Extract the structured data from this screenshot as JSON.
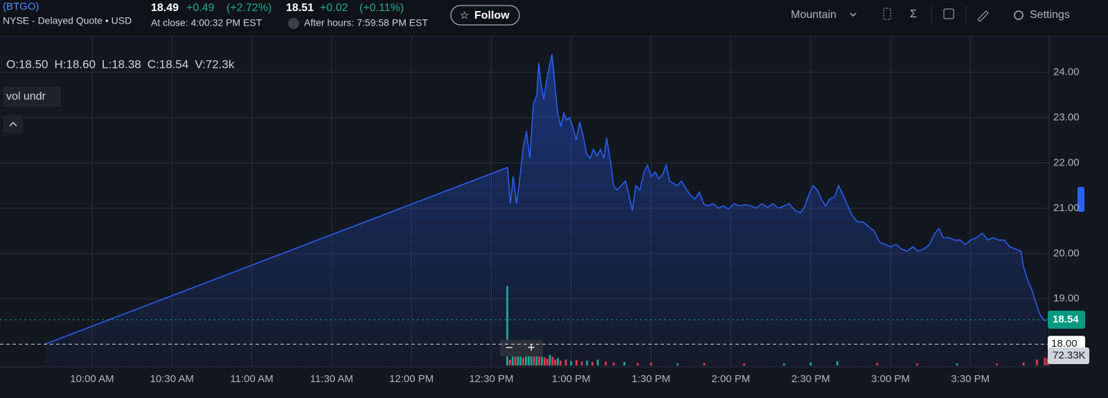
{
  "header": {
    "symbol": "(BTGO)",
    "exchange": "NYSE - Delayed Quote • USD",
    "close_price": "18.49",
    "close_change": "+0.49",
    "close_change_pct": "(+2.72%)",
    "close_time": "At close: 4:00:32 PM EST",
    "after_price": "18.51",
    "after_change": "+0.02",
    "after_change_pct": "(+0.11%)",
    "after_time": "After hours: 7:59:58 PM EST",
    "follow": "Follow",
    "timezone": "Mountain",
    "settings": "Settings"
  },
  "chart_data": {
    "type": "area",
    "ohlc": [
      "O:18.50",
      "H:18.60",
      "L:18.38",
      "C:18.54",
      "V:72.3k"
    ],
    "indicator": "vol undr",
    "x": [
      582.3,
      756.1,
      757.2,
      758.2,
      759.5,
      760.6,
      761.9,
      763.2,
      764.5,
      765.8,
      767.1,
      767.8,
      768.6,
      769.7,
      770.7,
      771.7,
      772.8,
      773.8,
      774.9,
      776.2,
      777.2,
      778.3,
      779.3,
      780.6,
      781.9,
      783.2,
      784.5,
      785.8,
      787.1,
      788.4,
      789.7,
      791.0,
      792.3,
      793.3,
      794.9,
      795.9,
      797.2,
      798.8,
      800.4,
      801.7,
      803.0,
      804.3,
      805.8,
      807.4,
      808.7,
      810.0,
      811.6,
      812.9,
      814.4,
      815.7,
      817.0,
      818.3,
      819.9,
      821.4,
      823.0,
      824.6,
      826.4,
      828.2,
      829.8,
      831.3,
      833.4,
      835.2,
      837.3,
      839.1,
      841.2,
      843.3,
      845.4,
      847.5,
      849.6,
      851.6,
      853.7,
      855.8,
      857.9,
      860.0,
      862.0,
      864.1,
      866.2,
      867.8,
      869.3,
      870.9,
      872.5,
      874.0,
      875.6,
      877.1,
      878.9,
      880.5,
      882.1,
      883.6,
      885.5,
      887.5,
      889.6,
      891.7,
      893.8,
      895.9,
      898.0,
      900.0,
      902.1,
      904.2,
      906.3,
      908.4,
      910.4,
      912.5,
      914.6,
      916.7,
      918.2,
      919.8,
      921.9,
      924.0,
      926.1,
      928.1,
      930.2,
      932.3,
      934.4,
      936.5,
      938.5,
      940.6,
      942.7,
      944.8,
      946.9,
      949.0,
      950.0,
      951.6,
      953.1,
      954.7,
      956.2,
      957.8,
      958.8
    ],
    "series": [
      {
        "color": "#2962ff",
        "values": [
          18.0,
          21.9,
          21.1,
          21.7,
          21.1,
          21.6,
          22.3,
          22.7,
          22.1,
          23.3,
          23.5,
          24.2,
          23.8,
          23.4,
          23.8,
          24.1,
          24.4,
          23.8,
          23.1,
          22.8,
          23.1,
          22.95,
          23.0,
          22.8,
          22.5,
          22.9,
          22.6,
          22.2,
          22.1,
          22.3,
          22.15,
          22.3,
          22.1,
          22.55,
          22.0,
          21.5,
          21.4,
          21.5,
          21.6,
          21.3,
          20.95,
          21.5,
          21.4,
          21.8,
          21.95,
          21.7,
          21.8,
          21.65,
          21.75,
          21.95,
          21.6,
          21.55,
          21.5,
          21.6,
          21.45,
          21.3,
          21.2,
          21.35,
          21.1,
          21.05,
          21.1,
          21.0,
          21.05,
          20.98,
          21.1,
          21.05,
          21.08,
          21.05,
          21.0,
          21.1,
          21.02,
          21.1,
          21.0,
          21.05,
          21.1,
          20.95,
          20.9,
          21.05,
          21.3,
          21.5,
          21.4,
          21.2,
          21.05,
          21.2,
          21.25,
          21.5,
          21.3,
          21.1,
          20.85,
          20.7,
          20.7,
          20.6,
          20.5,
          20.25,
          20.2,
          20.15,
          20.2,
          20.1,
          20.05,
          20.15,
          20.05,
          20.1,
          20.2,
          20.45,
          20.55,
          20.35,
          20.35,
          20.3,
          20.3,
          20.2,
          20.3,
          20.35,
          20.45,
          20.3,
          20.35,
          20.3,
          20.3,
          20.15,
          20.1,
          20.05,
          19.7,
          19.4,
          19.2,
          18.9,
          18.65,
          18.52,
          18.54
        ]
      }
    ],
    "volume": {
      "x": [
        756,
        757,
        758,
        759,
        760,
        761,
        762,
        763,
        764,
        765,
        766,
        767,
        768,
        769,
        770,
        771,
        772,
        773,
        774,
        775,
        776,
        778,
        780,
        782,
        784,
        786,
        788,
        790,
        793,
        796,
        800,
        805,
        810,
        820,
        830,
        845,
        860,
        870,
        880,
        895,
        910,
        925,
        940,
        950,
        955,
        958,
        959
      ],
      "values": [
        820000,
        60000,
        120000,
        90000,
        150000,
        100000,
        80000,
        110000,
        130000,
        140000,
        95000,
        120000,
        100000,
        90000,
        85000,
        70000,
        110000,
        90000,
        60000,
        75000,
        50000,
        60000,
        45000,
        55000,
        40000,
        50000,
        35000,
        60000,
        40000,
        30000,
        35000,
        25000,
        30000,
        20000,
        25000,
        20000,
        20000,
        30000,
        45000,
        25000,
        20000,
        20000,
        20000,
        30000,
        60000,
        80000,
        72330
      ],
      "colors": [
        "#22ab94",
        "#f23645",
        "#22ab94",
        "#f23645",
        "#22ab94",
        "#22ab94",
        "#f23645",
        "#22ab94",
        "#22ab94",
        "#22ab94",
        "#f23645",
        "#22ab94",
        "#f23645",
        "#22ab94",
        "#f23645",
        "#f23645",
        "#22ab94",
        "#f23645",
        "#f23645",
        "#22ab94",
        "#f23645",
        "#f23645",
        "#22ab94",
        "#f23645",
        "#f23645",
        "#22ab94",
        "#f23645",
        "#22ab94",
        "#f23645",
        "#f23645",
        "#22ab94",
        "#f23645",
        "#f23645",
        "#22ab94",
        "#f23645",
        "#f23645",
        "#22ab94",
        "#22ab94",
        "#22ab94",
        "#f23645",
        "#f23645",
        "#22ab94",
        "#f23645",
        "#f23645",
        "#f23645",
        "#f23645",
        "#f23645"
      ],
      "ylim": [
        0,
        1000000
      ],
      "label": {
        "value": 72330,
        "label": "72.33K"
      }
    },
    "xlim": [
      565.4,
      959.6
    ],
    "ylim": [
      17.5,
      24.8
    ],
    "xticks": [
      {
        "value": 600,
        "label": "10:00 AM"
      },
      {
        "value": 630,
        "label": "10:30 AM"
      },
      {
        "value": 660,
        "label": "11:00 AM"
      },
      {
        "value": 690,
        "label": "11:30 AM"
      },
      {
        "value": 720,
        "label": "12:00 PM"
      },
      {
        "value": 750,
        "label": "12:30 PM"
      },
      {
        "value": 780,
        "label": "1:00 PM"
      },
      {
        "value": 810,
        "label": "1:30 PM"
      },
      {
        "value": 840,
        "label": "2:00 PM"
      },
      {
        "value": 870,
        "label": "2:30 PM"
      },
      {
        "value": 900,
        "label": "3:00 PM"
      },
      {
        "value": 930,
        "label": "3:30 PM"
      }
    ],
    "yticks": [
      {
        "value": 19,
        "label": "19.00"
      },
      {
        "value": 20,
        "label": "20.00"
      },
      {
        "value": 21,
        "label": "21.00"
      },
      {
        "value": 22,
        "label": "22.00"
      },
      {
        "value": 23,
        "label": "23.00"
      },
      {
        "value": 24,
        "label": "24.00"
      }
    ],
    "grid": true,
    "last_price": {
      "value": 18.54,
      "label": "18.54"
    },
    "prev_close": {
      "value": 18,
      "label": "18.00"
    }
  }
}
